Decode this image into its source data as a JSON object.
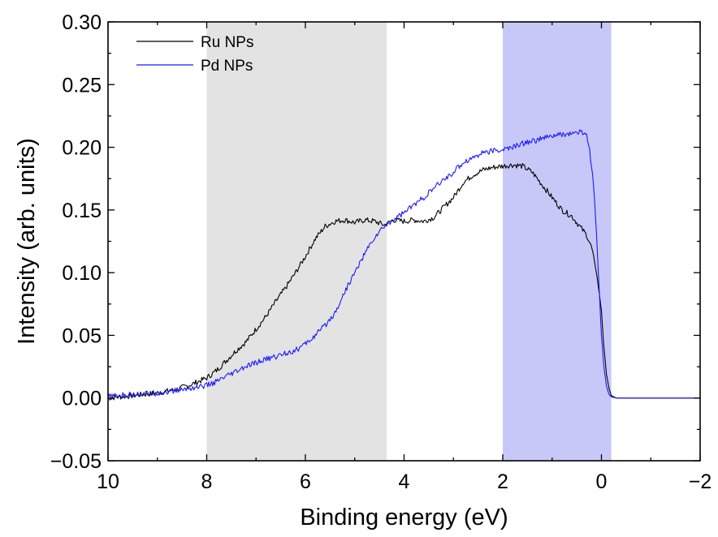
{
  "chart_data": {
    "type": "line",
    "title": "",
    "xlabel": "Binding energy (eV)",
    "ylabel": "Intensity (arb. units)",
    "xlim": [
      10,
      -2
    ],
    "ylim": [
      -0.05,
      0.3
    ],
    "x_reversed": true,
    "grid": false,
    "legend_position": "top-left",
    "x_ticks": [
      10,
      8,
      6,
      4,
      2,
      0,
      -2
    ],
    "x_tick_labels": [
      "10",
      "8",
      "6",
      "4",
      "2",
      "0",
      "−2"
    ],
    "y_ticks": [
      -0.05,
      0.0,
      0.05,
      0.1,
      0.15,
      0.2,
      0.25,
      0.3
    ],
    "y_tick_labels": [
      "−0.05",
      "0.00",
      "0.05",
      "0.10",
      "0.15",
      "0.20",
      "0.25",
      "0.30"
    ],
    "shaded_regions": [
      {
        "x_range": [
          8.0,
          4.35
        ],
        "color": "#e3e3e3"
      },
      {
        "x_range": [
          2.0,
          -0.2
        ],
        "color": "#c8c8f8"
      }
    ],
    "series": [
      {
        "name": "Ru NPs",
        "color": "#000000",
        "x": [
          10.0,
          9.5,
          9.0,
          8.6,
          8.3,
          8.0,
          7.8,
          7.6,
          7.4,
          7.2,
          7.0,
          6.8,
          6.6,
          6.4,
          6.2,
          6.0,
          5.8,
          5.6,
          5.4,
          5.2,
          5.0,
          4.8,
          4.6,
          4.4,
          4.2,
          4.0,
          3.8,
          3.6,
          3.4,
          3.2,
          3.0,
          2.8,
          2.6,
          2.4,
          2.2,
          2.0,
          1.8,
          1.6,
          1.4,
          1.2,
          1.0,
          0.8,
          0.6,
          0.4,
          0.3,
          0.2,
          0.1,
          0.0,
          -0.05,
          -0.1,
          -0.15,
          -0.2,
          -0.3,
          -0.5,
          -1.0,
          -1.5,
          -2.0
        ],
        "y": [
          0.0,
          0.002,
          0.004,
          0.007,
          0.011,
          0.016,
          0.022,
          0.03,
          0.038,
          0.045,
          0.055,
          0.065,
          0.077,
          0.088,
          0.1,
          0.113,
          0.127,
          0.137,
          0.141,
          0.142,
          0.14,
          0.142,
          0.141,
          0.138,
          0.142,
          0.141,
          0.142,
          0.141,
          0.144,
          0.152,
          0.16,
          0.172,
          0.178,
          0.182,
          0.184,
          0.185,
          0.186,
          0.185,
          0.18,
          0.17,
          0.16,
          0.15,
          0.145,
          0.135,
          0.13,
          0.12,
          0.1,
          0.07,
          0.04,
          0.02,
          0.008,
          0.002,
          0.0,
          0.0,
          0.0,
          0.0,
          0.0
        ]
      },
      {
        "name": "Pd NPs",
        "color": "#1a1aff",
        "x": [
          10.0,
          9.5,
          9.0,
          8.6,
          8.3,
          8.0,
          7.8,
          7.6,
          7.4,
          7.2,
          7.0,
          6.8,
          6.6,
          6.4,
          6.2,
          6.0,
          5.8,
          5.6,
          5.4,
          5.2,
          5.0,
          4.8,
          4.6,
          4.4,
          4.2,
          4.0,
          3.8,
          3.6,
          3.4,
          3.2,
          3.0,
          2.8,
          2.6,
          2.4,
          2.2,
          2.0,
          1.8,
          1.6,
          1.4,
          1.2,
          1.0,
          0.8,
          0.6,
          0.4,
          0.3,
          0.25,
          0.2,
          0.15,
          0.1,
          0.05,
          0.0,
          -0.05,
          -0.1,
          -0.15,
          -0.2,
          -0.3,
          -0.5,
          -1.0,
          -1.5,
          -2.0
        ],
        "y": [
          0.001,
          0.003,
          0.004,
          0.006,
          0.008,
          0.01,
          0.013,
          0.017,
          0.021,
          0.025,
          0.028,
          0.031,
          0.033,
          0.036,
          0.038,
          0.043,
          0.05,
          0.058,
          0.068,
          0.085,
          0.1,
          0.115,
          0.128,
          0.137,
          0.143,
          0.148,
          0.154,
          0.16,
          0.167,
          0.174,
          0.18,
          0.188,
          0.192,
          0.196,
          0.197,
          0.198,
          0.2,
          0.203,
          0.205,
          0.207,
          0.209,
          0.21,
          0.211,
          0.212,
          0.21,
          0.2,
          0.185,
          0.165,
          0.13,
          0.09,
          0.05,
          0.025,
          0.01,
          0.003,
          0.001,
          0.0,
          0.0,
          0.0,
          0.0,
          0.0
        ]
      }
    ]
  }
}
